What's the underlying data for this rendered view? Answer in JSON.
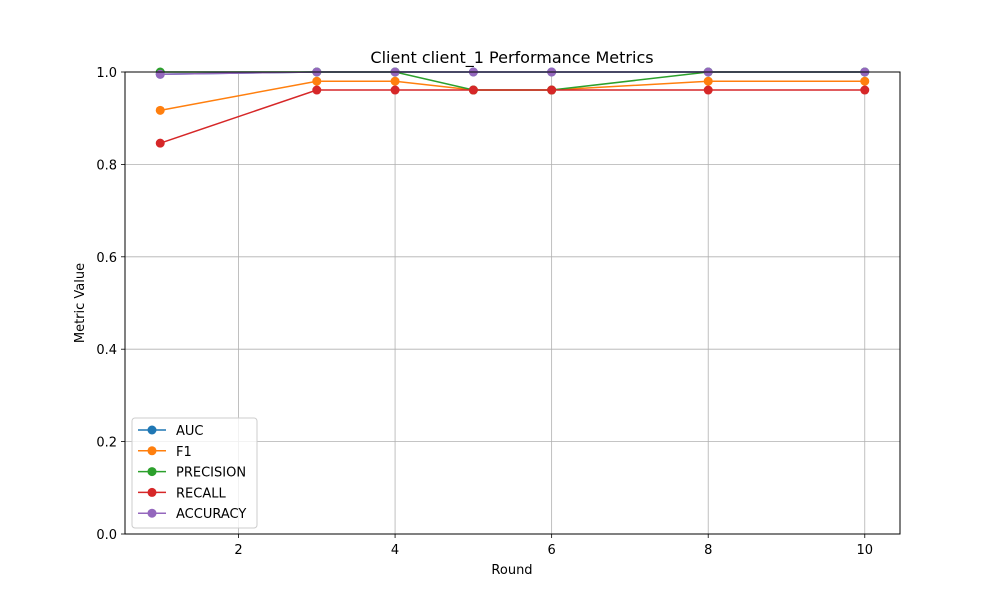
{
  "chart_data": {
    "type": "line",
    "title": "Client client_1 Performance Metrics",
    "xlabel": "Round",
    "ylabel": "Metric Value",
    "xlim": [
      0.55,
      10.45
    ],
    "ylim": [
      0.0,
      1.0
    ],
    "xticks": [
      2,
      4,
      6,
      8,
      10
    ],
    "yticks": [
      0.0,
      0.2,
      0.4,
      0.6,
      0.8,
      1.0
    ],
    "xtick_labels": [
      "2",
      "4",
      "6",
      "8",
      "10"
    ],
    "ytick_labels": [
      "0.0",
      "0.2",
      "0.4",
      "0.6",
      "0.8",
      "1.0"
    ],
    "grid": true,
    "legend_position": "lower-left",
    "x": [
      1,
      3,
      4,
      5,
      6,
      8,
      10
    ],
    "series": [
      {
        "name": "AUC",
        "color": "#1f77b4",
        "values": [
          0.995,
          1.0,
          1.0,
          1.0,
          1.0,
          1.0,
          1.0
        ]
      },
      {
        "name": "F1",
        "color": "#ff7f0e",
        "values": [
          0.917,
          0.98,
          0.98,
          0.961,
          0.961,
          0.98,
          0.98
        ]
      },
      {
        "name": "PRECISION",
        "color": "#2ca02c",
        "values": [
          1.0,
          1.0,
          1.0,
          0.961,
          0.961,
          1.0,
          1.0
        ]
      },
      {
        "name": "RECALL",
        "color": "#d62728",
        "values": [
          0.846,
          0.961,
          0.961,
          0.961,
          0.961,
          0.961,
          0.961
        ]
      },
      {
        "name": "ACCURACY",
        "color": "#9467bd",
        "values": [
          0.995,
          1.0,
          1.0,
          1.0,
          1.0,
          1.0,
          1.0
        ]
      }
    ]
  }
}
